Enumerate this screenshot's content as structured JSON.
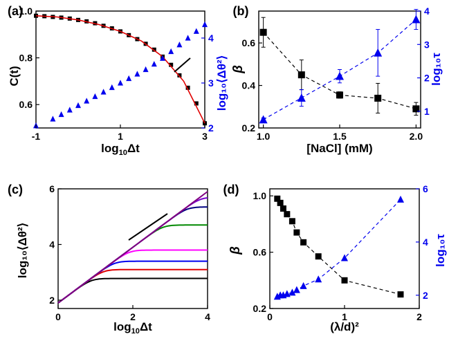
{
  "chart_data": [
    {
      "panel_label": "(a)",
      "type": "scatter",
      "xlabel_main": "log",
      "xlabel_sub": "10",
      "xlabel_tail": "Δt",
      "ylabel_left": "C(t)",
      "ylabel_right": "log₁₀⟨Δθ²⟩",
      "xlim": [
        -1,
        3
      ],
      "ylim_left": [
        0.5,
        1.0
      ],
      "ylim_right": [
        2,
        4.6
      ],
      "x_ticks": [
        -1,
        1,
        3
      ],
      "x_tick_labels": [
        "-1",
        "1",
        "3"
      ],
      "y_left_ticks": [
        0.6,
        0.8,
        1.0
      ],
      "y_left_tick_labels": [
        "0.6",
        "0.8",
        "1.0"
      ],
      "y_right_ticks": [
        2,
        3,
        4
      ],
      "y_right_tick_labels": [
        "2",
        "3",
        "4"
      ],
      "series": [
        {
          "axis": "left",
          "marker": "square",
          "color": "#000000",
          "x": [
            -1.0,
            -0.8,
            -0.6,
            -0.4,
            -0.2,
            0.0,
            0.2,
            0.4,
            0.6,
            0.8,
            1.0,
            1.2,
            1.4,
            1.6,
            1.8,
            2.0,
            2.2,
            2.4,
            2.6,
            2.8,
            3.0
          ],
          "y": [
            0.98,
            0.978,
            0.975,
            0.972,
            0.968,
            0.962,
            0.956,
            0.948,
            0.937,
            0.926,
            0.913,
            0.897,
            0.88,
            0.86,
            0.835,
            0.805,
            0.77,
            0.725,
            0.672,
            0.605,
            0.52
          ]
        },
        {
          "axis": "left",
          "marker": "line",
          "color": "#e00000",
          "x": [
            -1.0,
            -0.5,
            0.0,
            0.5,
            1.0,
            1.5,
            2.0,
            2.5,
            3.0
          ],
          "y": [
            0.98,
            0.975,
            0.962,
            0.942,
            0.913,
            0.872,
            0.805,
            0.7,
            0.52
          ]
        },
        {
          "axis": "right",
          "marker": "triangle",
          "color": "#0000ee",
          "x": [
            -1.0,
            -0.6,
            -0.4,
            -0.2,
            0.0,
            0.2,
            0.4,
            0.6,
            0.8,
            1.0,
            1.2,
            1.4,
            1.6,
            1.8,
            2.0,
            2.2,
            2.4,
            2.6,
            2.8,
            3.0
          ],
          "y": [
            2.05,
            2.2,
            2.3,
            2.4,
            2.5,
            2.6,
            2.7,
            2.8,
            2.9,
            3.0,
            3.1,
            3.2,
            3.3,
            3.42,
            3.55,
            3.7,
            3.85,
            4.0,
            4.15,
            4.3
          ]
        }
      ]
    },
    {
      "panel_label": "(b)",
      "type": "scatter",
      "xlabel": "[NaCl] (mM)",
      "ylabel_left": "β",
      "ylabel_right": "log₁₀τ",
      "xlim": [
        0.97,
        2.03
      ],
      "ylim_left": [
        0.2,
        0.75
      ],
      "ylim_right": [
        0.5,
        4
      ],
      "x_ticks": [
        1.0,
        1.5,
        2.0
      ],
      "x_tick_labels": [
        "1.0",
        "1.5",
        "2.0"
      ],
      "y_left_ticks": [
        0.2,
        0.4,
        0.6
      ],
      "y_left_tick_labels": [
        "0.2",
        "0.4",
        "0.6"
      ],
      "y_right_ticks": [
        1,
        2,
        3,
        4
      ],
      "y_right_tick_labels": [
        "1",
        "2",
        "3",
        "4"
      ],
      "series": [
        {
          "axis": "left",
          "marker": "square",
          "color": "#000000",
          "x": [
            1.0,
            1.25,
            1.5,
            1.75,
            2.0
          ],
          "y": [
            0.65,
            0.45,
            0.355,
            0.34,
            0.29
          ],
          "err": [
            0.07,
            0.07,
            0.015,
            0.07,
            0.03
          ]
        },
        {
          "axis": "right",
          "marker": "triangle",
          "color": "#0000ee",
          "x": [
            1.0,
            1.25,
            1.5,
            1.75,
            2.0
          ],
          "y": [
            0.75,
            1.4,
            2.05,
            2.75,
            3.75
          ],
          "err": [
            0.05,
            0.25,
            0.2,
            0.7,
            0.3
          ]
        }
      ]
    },
    {
      "panel_label": "(c)",
      "type": "line",
      "xlabel_main": "log",
      "xlabel_sub": "10",
      "xlabel_tail": "Δt",
      "ylabel": "log₁₀⟨Δθ²⟩",
      "xlim": [
        0,
        4
      ],
      "ylim": [
        1.7,
        6
      ],
      "x_ticks": [
        0,
        2,
        4
      ],
      "x_tick_labels": [
        "0",
        "2",
        "4"
      ],
      "y_ticks": [
        2,
        4,
        6
      ],
      "y_tick_labels": [
        "2",
        "4",
        "6"
      ],
      "series": [
        {
          "color": "#000000",
          "plateau": 2.78
        },
        {
          "color": "#e00000",
          "plateau": 3.1
        },
        {
          "color": "#0000ee",
          "plateau": 3.4
        },
        {
          "color": "#ff00ff",
          "plateau": 3.8
        },
        {
          "color": "#008800",
          "plateau": 4.7
        },
        {
          "color": "#000080",
          "plateau": 5.35
        },
        {
          "color": "#7700cc",
          "plateau": 5.7
        },
        {
          "color": "#800080",
          "plateau": 7.0
        }
      ],
      "line_start": [
        0,
        1.9
      ],
      "slope": 1.0
    },
    {
      "panel_label": "(d)",
      "type": "scatter",
      "xlabel": "(λ/d)²",
      "ylabel_left": "β",
      "ylabel_right": "log₁₀τ",
      "xlim": [
        0,
        2.0
      ],
      "ylim_left": [
        0.2,
        1.05
      ],
      "ylim_right": [
        1.5,
        6
      ],
      "x_ticks": [
        0,
        1,
        2
      ],
      "x_tick_labels": [
        "0",
        "1",
        "2"
      ],
      "y_left_ticks": [
        0.2,
        0.6,
        1.0
      ],
      "y_left_tick_labels": [
        "0.2",
        "0.6",
        "1.0"
      ],
      "y_right_ticks": [
        2,
        4,
        6
      ],
      "y_right_tick_labels": [
        "2",
        "4",
        "6"
      ],
      "series": [
        {
          "axis": "left",
          "marker": "square",
          "color": "#000000",
          "x": [
            0.1,
            0.14,
            0.18,
            0.23,
            0.3,
            0.36,
            0.45,
            0.65,
            1.0,
            1.75
          ],
          "y": [
            0.98,
            0.95,
            0.91,
            0.87,
            0.82,
            0.74,
            0.67,
            0.57,
            0.4,
            0.3
          ]
        },
        {
          "axis": "right",
          "marker": "triangle",
          "color": "#0000ee",
          "x": [
            0.1,
            0.14,
            0.18,
            0.23,
            0.3,
            0.36,
            0.45,
            0.65,
            1.0,
            1.75
          ],
          "y": [
            1.95,
            2.0,
            2.0,
            2.05,
            2.1,
            2.2,
            2.35,
            2.6,
            3.4,
            5.6
          ]
        }
      ]
    }
  ]
}
